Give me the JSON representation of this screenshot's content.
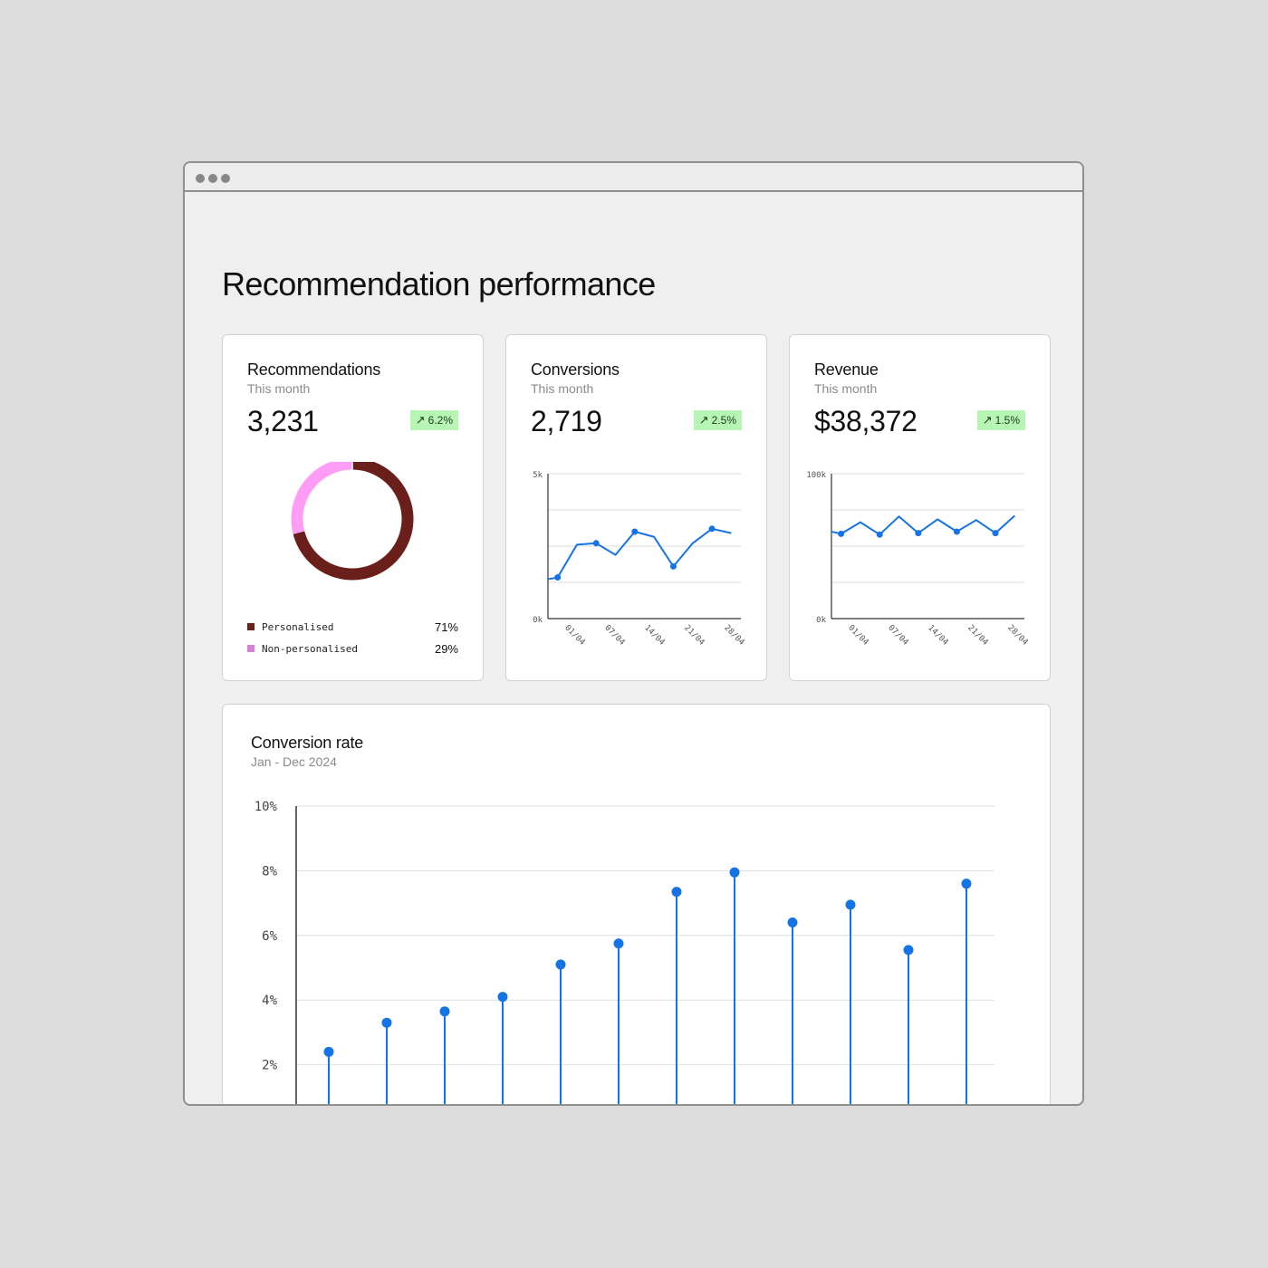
{
  "page_title": "Recommendation performance",
  "colors": {
    "accent": "#1673e6",
    "badge_bg": "#b7f5b4",
    "personalised": "#6b1f1a",
    "non_personalised": "#ff9cf5"
  },
  "cards": {
    "recommendations": {
      "title": "Recommendations",
      "subtitle": "This month",
      "value": "3,231",
      "change": "6.2%",
      "change_icon": "arrow-up-right-icon",
      "legend": [
        {
          "label": "Personalised",
          "value": "71%",
          "color": "#6b1f1a"
        },
        {
          "label": "Non-personalised",
          "value": "29%",
          "color": "#d77fd6"
        }
      ]
    },
    "conversions": {
      "title": "Conversions",
      "subtitle": "This month",
      "value": "2,719",
      "change": "2.5%",
      "change_icon": "arrow-up-right-icon"
    },
    "revenue": {
      "title": "Revenue",
      "subtitle": "This month",
      "value": "$38,372",
      "change": "1.5%",
      "change_icon": "arrow-up-right-icon"
    }
  },
  "conversion_rate": {
    "title": "Conversion rate",
    "subtitle": "Jan - Dec 2024"
  },
  "chart_data": [
    {
      "type": "pie",
      "variant": "donut",
      "categories": [
        "Personalised",
        "Non-personalised"
      ],
      "values": [
        71,
        29
      ]
    },
    {
      "type": "line",
      "x": [
        "01/04",
        "07/04",
        "14/04",
        "21/04",
        "28/04"
      ],
      "ylim": [
        0,
        5000
      ],
      "y_ticks": [
        "5k",
        "0k"
      ],
      "grid": true,
      "series": [
        {
          "x": [
            0,
            3,
            6,
            9,
            12,
            15,
            18,
            21,
            24,
            27,
            30
          ],
          "values": [
            1300,
            1420,
            2550,
            2600,
            2200,
            3000,
            2820,
            1800,
            2600,
            3100,
            2950
          ]
        }
      ]
    },
    {
      "type": "line",
      "x": [
        "01/04",
        "07/04",
        "14/04",
        "21/04",
        "28/04"
      ],
      "ylim": [
        0,
        100000
      ],
      "y_ticks": [
        "100k",
        "0k"
      ],
      "grid": true,
      "series": [
        {
          "x": [
            0,
            3,
            6,
            9,
            12,
            15,
            18,
            21,
            24,
            27,
            30
          ],
          "values": [
            61500,
            58500,
            66500,
            58000,
            70500,
            59000,
            68500,
            60000,
            68000,
            59000,
            71000
          ]
        }
      ]
    },
    {
      "type": "scatter",
      "variant": "lollipop",
      "ylim": [
        1,
        10
      ],
      "y_ticks": [
        "10%",
        "8%",
        "6%",
        "4%",
        "2%"
      ],
      "grid": true,
      "series": [
        {
          "values": [
            2.4,
            3.3,
            3.65,
            4.1,
            5.1,
            5.75,
            7.35,
            7.95,
            6.4,
            6.95,
            5.55,
            7.6
          ]
        }
      ]
    }
  ]
}
